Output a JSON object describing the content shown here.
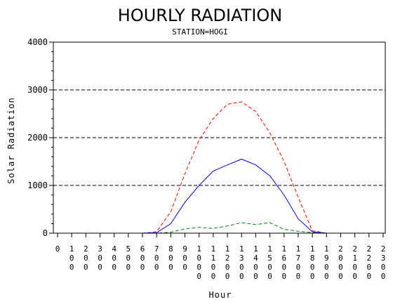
{
  "chart_data": {
    "type": "line",
    "title": "HOURLY RADIATION",
    "subtitle": "STATION=HOGI",
    "xlabel": "Hour",
    "ylabel": "Solar Radiation",
    "ylim": [
      0,
      4000
    ],
    "yticks": [
      "0",
      "1000",
      "2000",
      "3000",
      "4000"
    ],
    "x_ticks": [
      "0",
      "100",
      "200",
      "300",
      "400",
      "500",
      "600",
      "700",
      "800",
      "900",
      "1000",
      "1100",
      "1200",
      "1300",
      "1400",
      "1500",
      "1600",
      "1700",
      "1800",
      "1900",
      "2000",
      "2100",
      "2200",
      "2300"
    ],
    "x": [
      0,
      100,
      200,
      300,
      400,
      500,
      600,
      700,
      800,
      900,
      1000,
      1100,
      1200,
      1300,
      1400,
      1500,
      1600,
      1700,
      1800,
      1900,
      2000,
      2100,
      2200,
      2300
    ],
    "grid": "horizontal dashed",
    "series": [
      {
        "color": "#ff0000",
        "style": "dashed",
        "values": [
          0,
          0,
          0,
          0,
          0,
          0,
          0,
          30,
          450,
          1250,
          1950,
          2400,
          2700,
          2750,
          2550,
          2100,
          1500,
          750,
          50,
          0,
          0,
          0,
          0,
          0
        ]
      },
      {
        "color": "#0000ff",
        "style": "solid",
        "values": [
          0,
          0,
          0,
          0,
          0,
          0,
          0,
          10,
          200,
          650,
          1000,
          1300,
          1430,
          1550,
          1430,
          1200,
          800,
          300,
          30,
          0,
          0,
          0,
          0,
          0
        ]
      },
      {
        "color": "#008000",
        "style": "dashed",
        "values": [
          0,
          0,
          0,
          0,
          0,
          0,
          0,
          0,
          20,
          90,
          120,
          100,
          150,
          220,
          180,
          220,
          80,
          40,
          10,
          0,
          0,
          0,
          0,
          0
        ]
      }
    ]
  }
}
